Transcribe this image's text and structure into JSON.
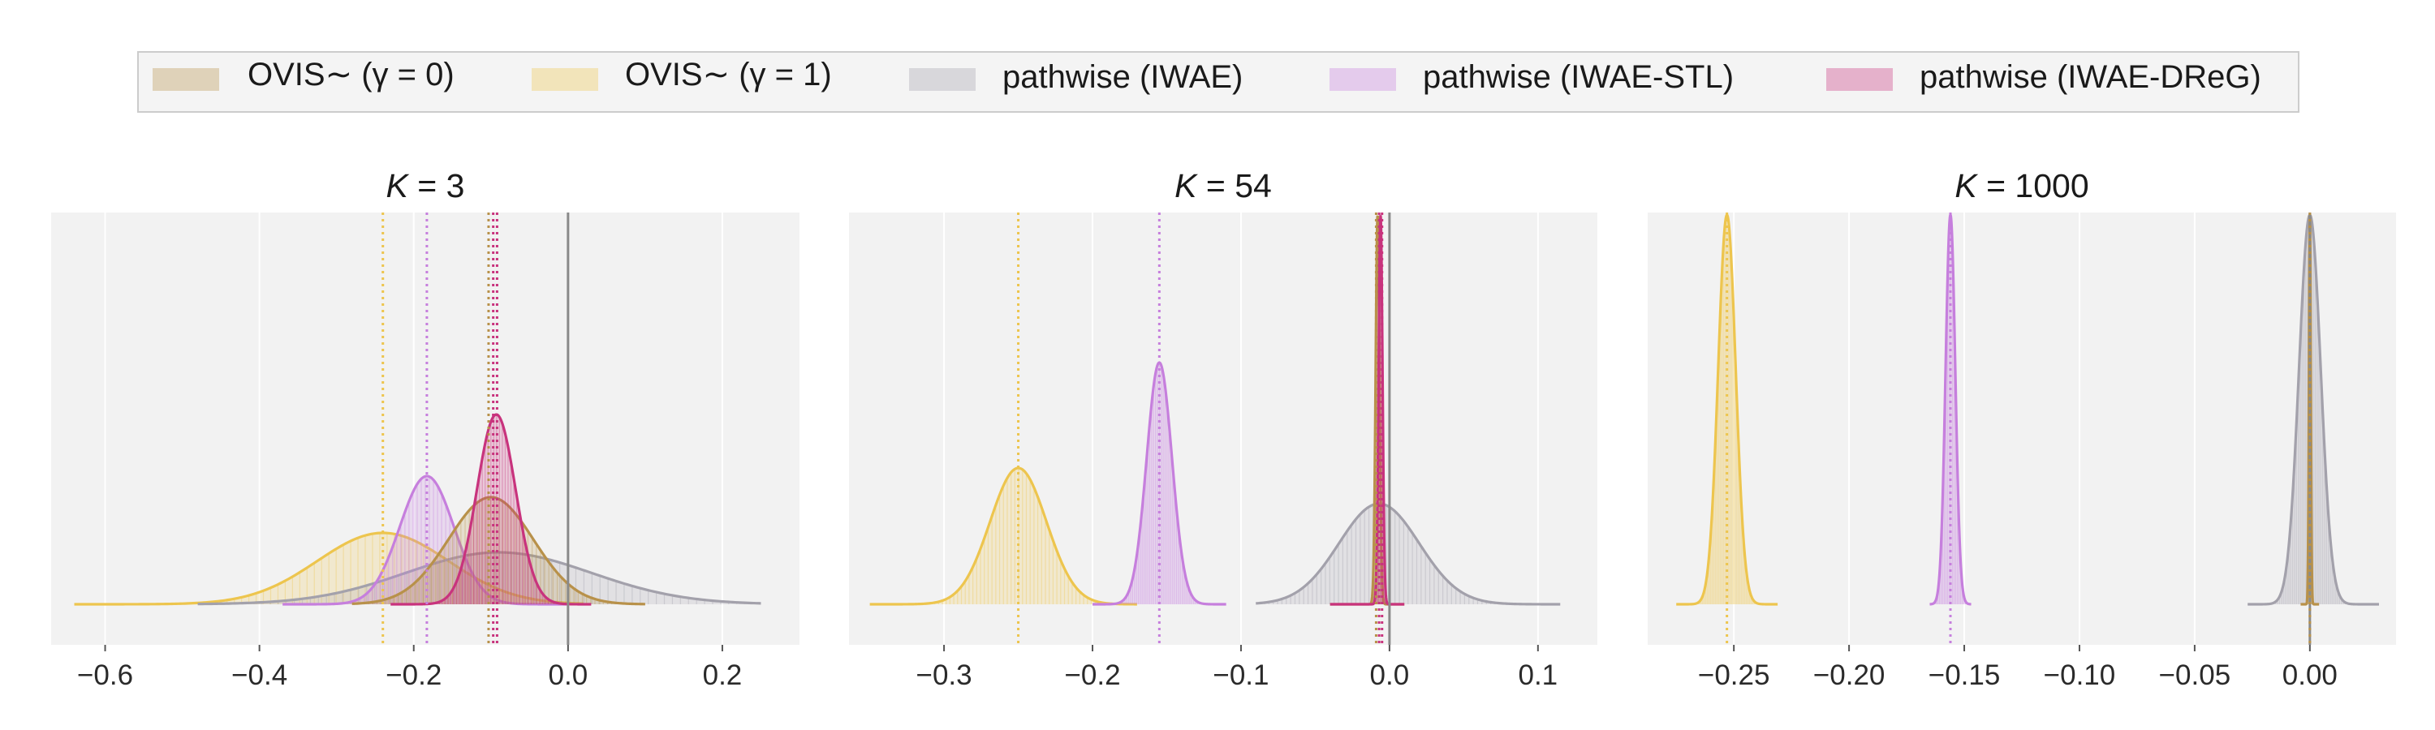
{
  "legend": {
    "items": [
      {
        "label": "OVIS∼ (γ = 0)",
        "color": "#b8914a"
      },
      {
        "label": "OVIS∼ (γ = 1)",
        "color": "#edc54e"
      },
      {
        "label": "pathwise (IWAE)",
        "color": "#a3a1ab"
      },
      {
        "label": "pathwise (IWAE-STL)",
        "color": "#c67fdd"
      },
      {
        "label": "pathwise (IWAE-DReG)",
        "color": "#c8337d"
      }
    ]
  },
  "chart_data": [
    {
      "type": "area",
      "title": "K = 3",
      "title_var": "K",
      "title_rest": " = 3",
      "xlim": [
        -0.67,
        0.3
      ],
      "ticks": [
        -0.6,
        -0.4,
        -0.2,
        0.0,
        0.2
      ],
      "tick_labels": [
        "−0.6",
        "−0.4",
        "−0.2",
        "0.0",
        "0.2"
      ],
      "reference_line": 0.0,
      "series": [
        {
          "name": "OVIS∼ (γ = 1)",
          "color": "#edc54e",
          "mean": -0.24,
          "sd": 0.085,
          "peak": 0.22,
          "range": [
            -0.64,
            0.02
          ]
        },
        {
          "name": "pathwise (IWAE)",
          "color": "#a3a1ab",
          "mean": -0.09,
          "sd": 0.12,
          "peak": 0.16,
          "range": [
            -0.48,
            0.25
          ]
        },
        {
          "name": "pathwise (IWAE-STL)",
          "color": "#c67fdd",
          "mean": -0.183,
          "sd": 0.035,
          "peak": 0.395,
          "range": [
            -0.37,
            0.0
          ]
        },
        {
          "name": "OVIS∼ (γ = 0)",
          "color": "#b8914a",
          "mean": -0.1,
          "sd": 0.055,
          "peak": 0.33,
          "range": [
            -0.28,
            0.1
          ]
        },
        {
          "name": "pathwise (IWAE-DReG)",
          "color": "#c8337d",
          "mean": -0.093,
          "sd": 0.025,
          "peak": 0.585,
          "range": [
            -0.23,
            0.03
          ]
        }
      ],
      "mean_lines": [
        {
          "x": -0.24,
          "color": "#edc54e"
        },
        {
          "x": -0.183,
          "color": "#c67fdd"
        },
        {
          "x": -0.103,
          "color": "#b8914a"
        },
        {
          "x": -0.097,
          "color": "#c8337d"
        },
        {
          "x": -0.092,
          "color": "#c8337d"
        }
      ]
    },
    {
      "type": "area",
      "title": "K = 54",
      "title_var": "K",
      "title_rest": " = 54",
      "xlim": [
        -0.364,
        0.14
      ],
      "ticks": [
        -0.3,
        -0.2,
        -0.1,
        0.0,
        0.1
      ],
      "tick_labels": [
        "−0.3",
        "−0.2",
        "−0.1",
        "0.0",
        "0.1"
      ],
      "reference_line": 0.0,
      "series": [
        {
          "name": "OVIS∼ (γ = 1)",
          "color": "#edc54e",
          "mean": -0.25,
          "sd": 0.019,
          "peak": 0.42,
          "range": [
            -0.35,
            -0.17
          ]
        },
        {
          "name": "pathwise (IWAE-STL)",
          "color": "#c67fdd",
          "mean": -0.155,
          "sd": 0.0085,
          "peak": 0.745,
          "range": [
            -0.2,
            -0.11
          ]
        },
        {
          "name": "pathwise (IWAE)",
          "color": "#a3a1ab",
          "mean": -0.007,
          "sd": 0.027,
          "peak": 0.31,
          "range": [
            -0.09,
            0.115
          ]
        },
        {
          "name": "OVIS∼ (γ = 0)",
          "color": "#b8914a",
          "mean": -0.008,
          "sd": 0.0013,
          "peak": 1.2,
          "range": [
            -0.04,
            0.01
          ]
        },
        {
          "name": "pathwise (IWAE-DReG)",
          "color": "#c8337d",
          "mean": -0.006,
          "sd": 0.0013,
          "peak": 1.2,
          "range": [
            -0.04,
            0.01
          ]
        }
      ],
      "mean_lines": [
        {
          "x": -0.25,
          "color": "#edc54e"
        },
        {
          "x": -0.155,
          "color": "#c67fdd"
        },
        {
          "x": -0.009,
          "color": "#b8914a"
        },
        {
          "x": -0.007,
          "color": "#c8337d"
        },
        {
          "x": -0.005,
          "color": "#c8337d"
        }
      ]
    },
    {
      "type": "area",
      "title": "K = 1000",
      "title_var": "K",
      "title_rest": " = 1000",
      "xlim": [
        -0.2874,
        0.0374
      ],
      "ticks": [
        -0.25,
        -0.2,
        -0.15,
        -0.1,
        -0.05,
        0.0
      ],
      "tick_labels": [
        "−0.25",
        "−0.20",
        "−0.15",
        "−0.10",
        "−0.05",
        "0.00"
      ],
      "reference_line": 0.0,
      "series": [
        {
          "name": "OVIS∼ (γ = 1)",
          "color": "#edc54e",
          "mean": -0.253,
          "sd": 0.0038,
          "peak": 1.2,
          "range": [
            -0.275,
            -0.231
          ]
        },
        {
          "name": "pathwise (IWAE-STL)",
          "color": "#c67fdd",
          "mean": -0.156,
          "sd": 0.0021,
          "peak": 1.2,
          "range": [
            -0.165,
            -0.147
          ]
        },
        {
          "name": "pathwise (IWAE)",
          "color": "#a3a1ab",
          "mean": 0.0,
          "sd": 0.0047,
          "peak": 1.2,
          "range": [
            -0.027,
            0.03
          ]
        },
        {
          "name": "OVIS∼ (γ = 0)",
          "color": "#b8914a",
          "mean": 0.0,
          "sd": 0.0004,
          "peak": 1.2,
          "range": [
            -0.004,
            0.004
          ]
        }
      ],
      "mean_lines": [
        {
          "x": -0.253,
          "color": "#edc54e"
        },
        {
          "x": -0.156,
          "color": "#c67fdd"
        },
        {
          "x": 0.0,
          "color": "#b8914a"
        }
      ]
    }
  ]
}
